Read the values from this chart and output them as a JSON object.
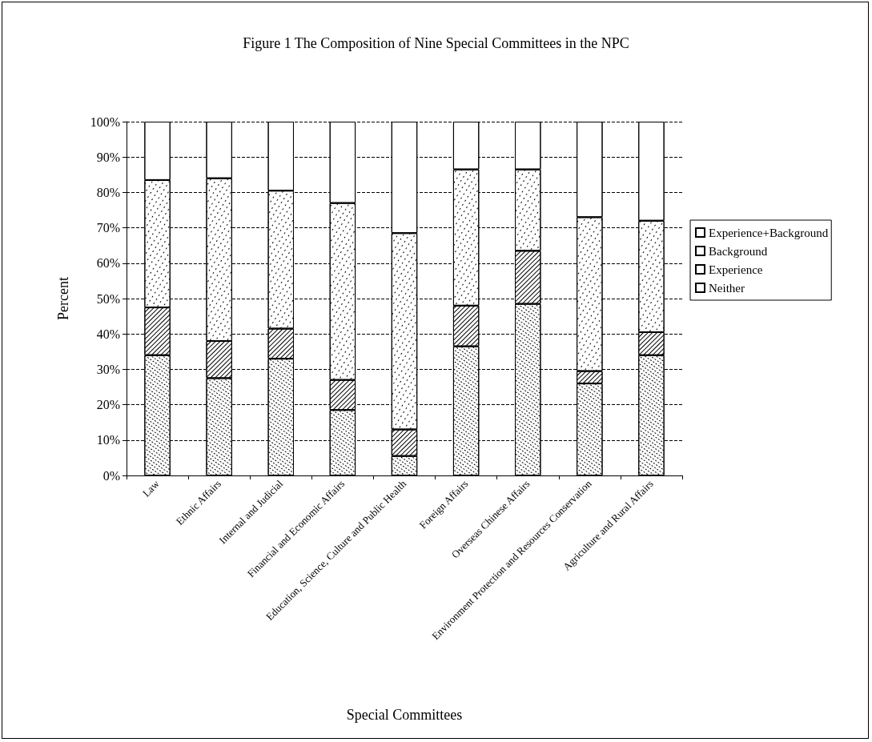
{
  "chart_data": {
    "type": "bar",
    "stacked": true,
    "title": "Figure 1 The Composition of Nine Special Committees in the NPC",
    "xlabel": "Special Committees",
    "ylabel": "Percent",
    "categories": [
      "Law",
      "Ethnic Affairs",
      "Internal and Judicial",
      "Financial and Economic Affairs",
      "Education, Science, Culture and Public Health",
      "Foreign Affairs",
      "Overseas Chinese Affairs",
      "Environment Protection and Resources Conservation",
      "Agriculture and Rural Affairs"
    ],
    "series": [
      {
        "name": "Neither",
        "color": "#ffffff",
        "values": [
          34,
          27.5,
          33,
          18.5,
          5.5,
          36.5,
          48.5,
          26,
          34
        ]
      },
      {
        "name": "Experience",
        "color": "#ffffff",
        "values": [
          13.5,
          10.5,
          8.5,
          8.5,
          7.5,
          11.5,
          15,
          3.5,
          6.5
        ]
      },
      {
        "name": "Background",
        "color": "#ffffff",
        "values": [
          36,
          46,
          39,
          50,
          55.5,
          38.5,
          23,
          43.5,
          31.5
        ]
      },
      {
        "name": "Experience+Background",
        "color": "#ffffff",
        "values": [
          16.5,
          16,
          19.5,
          23,
          31.5,
          13.5,
          13.5,
          27,
          28
        ]
      }
    ],
    "ylim": [
      0,
      100
    ],
    "yticks": [
      {
        "value": 0,
        "label": "0%"
      },
      {
        "value": 10,
        "label": "10%"
      },
      {
        "value": 20,
        "label": "20%"
      },
      {
        "value": 30,
        "label": "30%"
      },
      {
        "value": 40,
        "label": "40%"
      },
      {
        "value": 50,
        "label": "50%"
      },
      {
        "value": 60,
        "label": "60%"
      },
      {
        "value": 70,
        "label": "70%"
      },
      {
        "value": 80,
        "label": "80%"
      },
      {
        "value": 90,
        "label": "90%"
      },
      {
        "value": 100,
        "label": "100%"
      }
    ],
    "grid": "y",
    "legend": "right"
  }
}
